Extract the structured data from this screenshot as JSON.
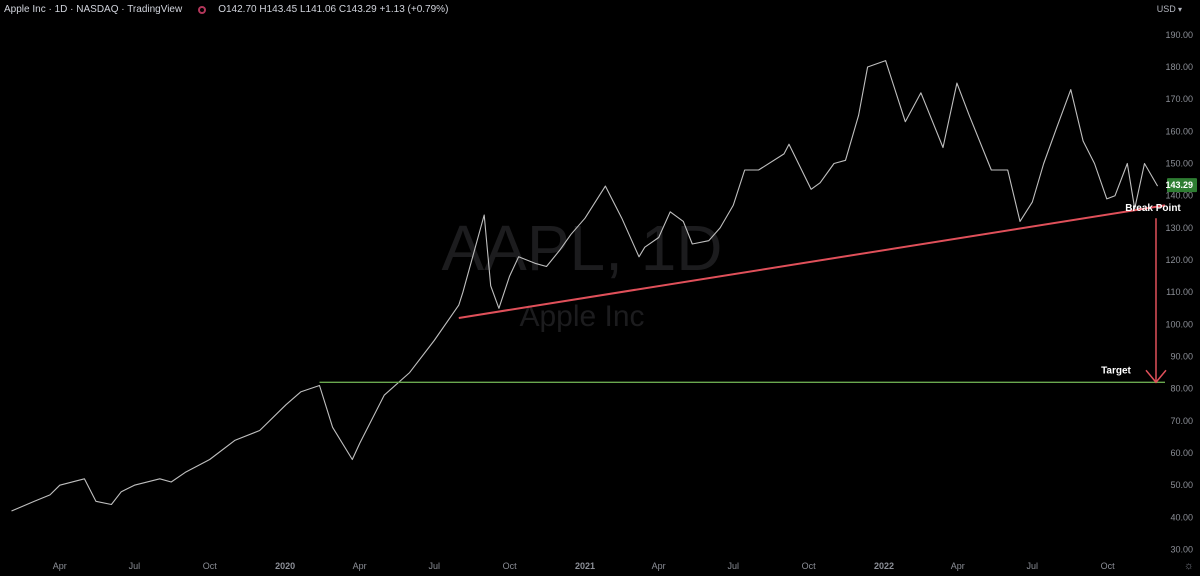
{
  "header": {
    "title": "Apple Inc · 1D · NASDAQ · TradingView",
    "ohlc": "O142.70 H143.45 L141.06 C143.29 +1.13 (+0.79%)"
  },
  "currency": "USD",
  "watermark": {
    "ticker": "AAPL, 1D",
    "name": "Apple Inc"
  },
  "colors": {
    "background": "#000000",
    "candle": "#bfbfbf",
    "trendline": "#e0505a",
    "target_line": "#6aa84f",
    "arrow": "#e0505a",
    "price_badge": "#2e7d32",
    "axis_text": "#8c8f97"
  },
  "chart_data": {
    "type": "line",
    "series": [
      {
        "x": [
          "2019-02-01",
          "2019-03-01",
          "2019-03-20",
          "2019-04-01",
          "2019-05-01",
          "2019-05-15",
          "2019-06-03",
          "2019-06-15",
          "2019-07-01",
          "2019-08-01",
          "2019-08-15",
          "2019-09-01",
          "2019-10-01",
          "2019-11-01",
          "2019-12-01",
          "2020-01-02",
          "2020-01-20",
          "2020-02-12",
          "2020-02-28",
          "2020-03-23",
          "2020-04-01",
          "2020-05-01",
          "2020-06-01",
          "2020-07-01",
          "2020-07-31",
          "2020-08-05",
          "2020-08-31",
          "2020-09-08",
          "2020-09-18",
          "2020-10-01",
          "2020-10-12",
          "2020-11-01",
          "2020-11-15",
          "2020-12-01",
          "2020-12-15",
          "2021-01-01",
          "2021-01-26",
          "2021-02-15",
          "2021-03-08",
          "2021-03-15",
          "2021-04-01",
          "2021-04-15",
          "2021-05-01",
          "2021-05-12",
          "2021-06-01",
          "2021-06-15",
          "2021-07-01",
          "2021-07-15",
          "2021-08-01",
          "2021-09-01",
          "2021-09-07",
          "2021-10-04",
          "2021-10-15",
          "2021-11-01",
          "2021-11-15",
          "2021-12-01",
          "2021-12-12",
          "2022-01-03",
          "2022-01-27",
          "2022-02-15",
          "2022-03-14",
          "2022-03-31",
          "2022-04-15",
          "2022-05-12",
          "2022-06-01",
          "2022-06-16",
          "2022-07-01",
          "2022-07-15",
          "2022-08-01",
          "2022-08-17",
          "2022-09-01",
          "2022-09-15",
          "2022-09-30",
          "2022-10-10",
          "2022-10-25",
          "2022-11-03",
          "2022-11-15",
          "2022-12-01"
        ],
        "values": [
          42,
          45,
          47,
          50,
          52,
          45,
          44,
          48,
          50,
          52,
          51,
          54,
          58,
          64,
          67,
          75,
          79,
          81,
          68,
          58,
          63,
          78,
          85,
          95,
          106,
          110,
          134,
          112,
          105,
          115,
          121,
          119,
          118,
          123,
          128,
          133,
          143,
          133,
          121,
          124,
          127,
          135,
          132,
          125,
          126,
          130,
          137,
          148,
          148,
          153,
          156,
          142,
          144,
          150,
          151,
          165,
          180,
          182,
          163,
          172,
          155,
          175,
          165,
          148,
          148,
          132,
          138,
          150,
          162,
          173,
          157,
          150,
          139,
          140,
          150,
          136,
          150,
          143
        ]
      }
    ],
    "trendline": {
      "from": {
        "x": "2020-07-31",
        "y": 102
      },
      "to": {
        "x": "2022-12-10",
        "y": 137
      }
    },
    "target_line": {
      "y": 82,
      "from": "2020-02-12",
      "to": "2022-12-10"
    },
    "arrow": {
      "x": "2022-11-29",
      "from": 133,
      "to": 82
    },
    "annotations": {
      "break_point": "Break Point",
      "target": "Target"
    },
    "last_price": "143.29",
    "y_axis": {
      "ticks": [
        "190.00",
        "180.00",
        "170.00",
        "160.00",
        "150.00",
        "140.00",
        "130.00",
        "120.00",
        "110.00",
        "100.00",
        "90.00",
        "80.00",
        "70.00",
        "60.00",
        "50.00",
        "40.00",
        "30.00"
      ],
      "range": [
        28,
        194
      ]
    },
    "x_axis": {
      "range": [
        "2019-01-18",
        "2022-12-10"
      ],
      "ticks": [
        {
          "label": "Apr",
          "date": "2019-04-01",
          "bold": false
        },
        {
          "label": "Jul",
          "date": "2019-07-01",
          "bold": false
        },
        {
          "label": "Oct",
          "date": "2019-10-01",
          "bold": false
        },
        {
          "label": "2020",
          "date": "2020-01-01",
          "bold": true
        },
        {
          "label": "Apr",
          "date": "2020-04-01",
          "bold": false
        },
        {
          "label": "Jul",
          "date": "2020-07-01",
          "bold": false
        },
        {
          "label": "Oct",
          "date": "2020-10-01",
          "bold": false
        },
        {
          "label": "2021",
          "date": "2021-01-01",
          "bold": true
        },
        {
          "label": "Apr",
          "date": "2021-04-01",
          "bold": false
        },
        {
          "label": "Jul",
          "date": "2021-07-01",
          "bold": false
        },
        {
          "label": "Oct",
          "date": "2021-10-01",
          "bold": false
        },
        {
          "label": "2022",
          "date": "2022-01-01",
          "bold": true
        },
        {
          "label": "Apr",
          "date": "2022-04-01",
          "bold": false
        },
        {
          "label": "Jul",
          "date": "2022-07-01",
          "bold": false
        },
        {
          "label": "Oct",
          "date": "2022-10-01",
          "bold": false
        }
      ]
    },
    "grid": false
  }
}
